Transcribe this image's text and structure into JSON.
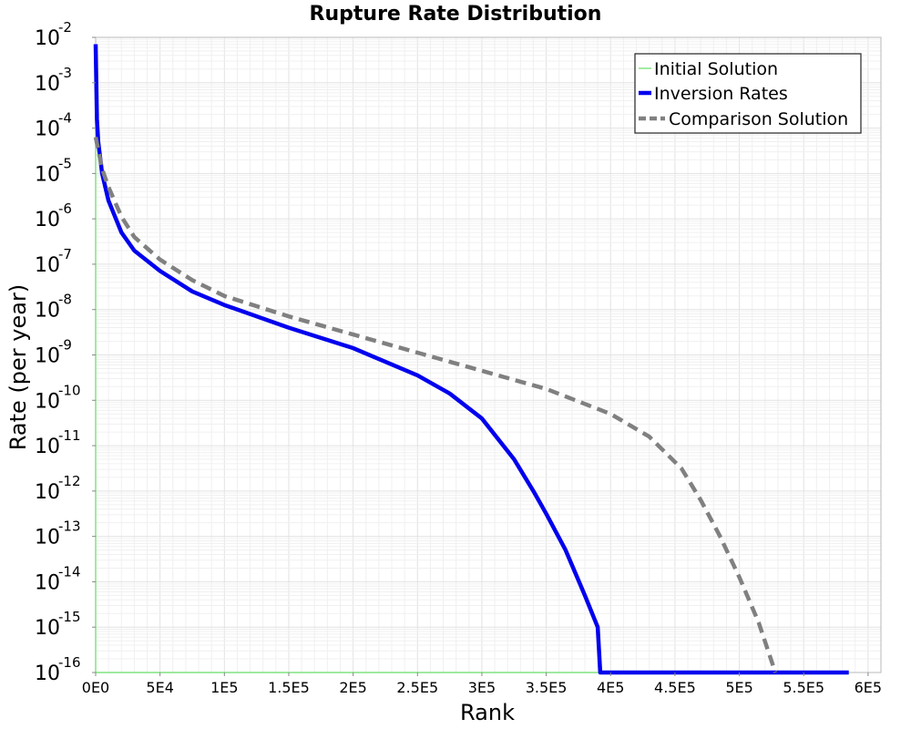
{
  "chart_data": {
    "type": "line",
    "title": "Rupture Rate Distribution",
    "xlabel": "Rank",
    "ylabel": "Rate (per year)",
    "xlim": [
      0,
      610000
    ],
    "ylim_log10": [
      -16,
      -2
    ],
    "y_scale": "log",
    "grid": true,
    "legend_position": "top-right",
    "x_ticks": [
      {
        "value": 0,
        "label": "0E0"
      },
      {
        "value": 50000,
        "label": "5E4"
      },
      {
        "value": 100000,
        "label": "1E5"
      },
      {
        "value": 150000,
        "label": "1.5E5"
      },
      {
        "value": 200000,
        "label": "2E5"
      },
      {
        "value": 250000,
        "label": "2.5E5"
      },
      {
        "value": 300000,
        "label": "3E5"
      },
      {
        "value": 350000,
        "label": "3.5E5"
      },
      {
        "value": 400000,
        "label": "4E5"
      },
      {
        "value": 450000,
        "label": "4.5E5"
      },
      {
        "value": 500000,
        "label": "5E5"
      },
      {
        "value": 550000,
        "label": "5.5E5"
      },
      {
        "value": 600000,
        "label": "6E5"
      }
    ],
    "y_ticks": [
      {
        "exp": -2,
        "base": "10",
        "sup": "-2"
      },
      {
        "exp": -3,
        "base": "10",
        "sup": "-3"
      },
      {
        "exp": -4,
        "base": "10",
        "sup": "-4"
      },
      {
        "exp": -5,
        "base": "10",
        "sup": "-5"
      },
      {
        "exp": -6,
        "base": "10",
        "sup": "-6"
      },
      {
        "exp": -7,
        "base": "10",
        "sup": "-7"
      },
      {
        "exp": -8,
        "base": "10",
        "sup": "-8"
      },
      {
        "exp": -9,
        "base": "10",
        "sup": "-9"
      },
      {
        "exp": -10,
        "base": "10",
        "sup": "-10"
      },
      {
        "exp": -11,
        "base": "10",
        "sup": "-11"
      },
      {
        "exp": -12,
        "base": "10",
        "sup": "-12"
      },
      {
        "exp": -13,
        "base": "10",
        "sup": "-13"
      },
      {
        "exp": -14,
        "base": "10",
        "sup": "-14"
      },
      {
        "exp": -15,
        "base": "10",
        "sup": "-15"
      },
      {
        "exp": -16,
        "base": "10",
        "sup": "-16"
      }
    ],
    "series": [
      {
        "name": "Initial Solution",
        "color": "#66dd66",
        "style": "solid-thin",
        "points": [
          [
            0,
            -2.2
          ],
          [
            0,
            -16
          ],
          [
            585000,
            -16
          ]
        ]
      },
      {
        "name": "Inversion Rates",
        "color": "#0000ee",
        "style": "solid-thick",
        "points": [
          [
            0,
            -2.15
          ],
          [
            1000,
            -3.8
          ],
          [
            2000,
            -4.3
          ],
          [
            5000,
            -5.0
          ],
          [
            10000,
            -5.6
          ],
          [
            20000,
            -6.3
          ],
          [
            30000,
            -6.7
          ],
          [
            50000,
            -7.15
          ],
          [
            75000,
            -7.6
          ],
          [
            100000,
            -7.9
          ],
          [
            150000,
            -8.4
          ],
          [
            200000,
            -8.85
          ],
          [
            250000,
            -9.45
          ],
          [
            275000,
            -9.85
          ],
          [
            300000,
            -10.4
          ],
          [
            325000,
            -11.3
          ],
          [
            340000,
            -12.0
          ],
          [
            350000,
            -12.5
          ],
          [
            365000,
            -13.3
          ],
          [
            380000,
            -14.3
          ],
          [
            390000,
            -15.0
          ],
          [
            392000,
            -16.0
          ],
          [
            585000,
            -16.0
          ]
        ]
      },
      {
        "name": "Comparison Solution",
        "color": "#808080",
        "style": "dashed-thick",
        "points": [
          [
            0,
            -4.2
          ],
          [
            5000,
            -4.9
          ],
          [
            10000,
            -5.3
          ],
          [
            20000,
            -5.95
          ],
          [
            30000,
            -6.4
          ],
          [
            50000,
            -6.9
          ],
          [
            75000,
            -7.35
          ],
          [
            100000,
            -7.7
          ],
          [
            150000,
            -8.15
          ],
          [
            200000,
            -8.55
          ],
          [
            250000,
            -8.95
          ],
          [
            300000,
            -9.35
          ],
          [
            350000,
            -9.75
          ],
          [
            400000,
            -10.3
          ],
          [
            430000,
            -10.8
          ],
          [
            455000,
            -11.5
          ],
          [
            470000,
            -12.2
          ],
          [
            485000,
            -13.0
          ],
          [
            500000,
            -13.9
          ],
          [
            515000,
            -14.9
          ],
          [
            528000,
            -16.0
          ]
        ]
      }
    ]
  }
}
